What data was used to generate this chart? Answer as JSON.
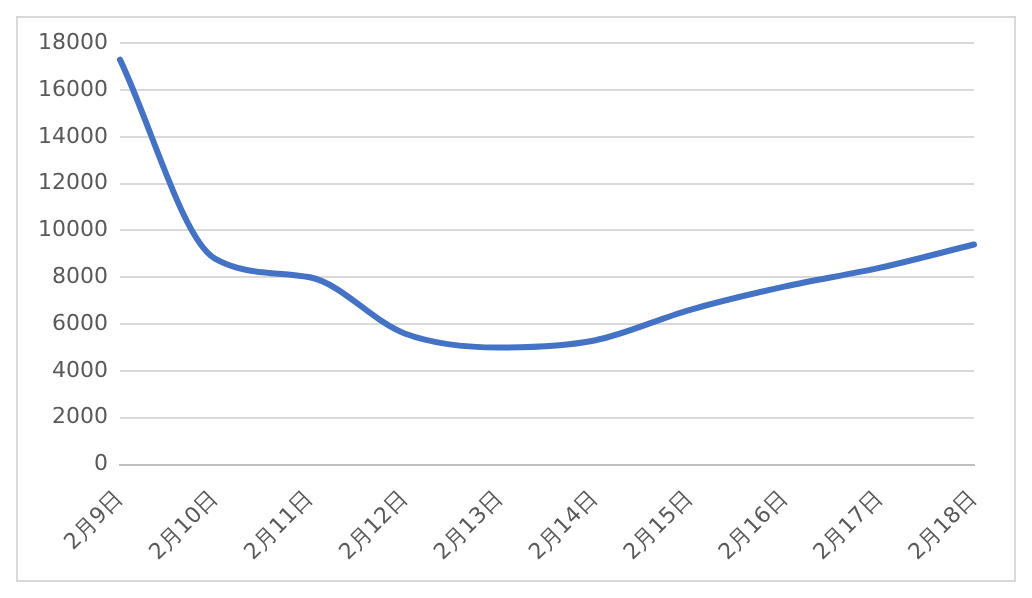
{
  "chart_data": {
    "type": "line",
    "categories": [
      "2月9日",
      "2月10日",
      "2月11日",
      "2月12日",
      "2月13日",
      "2月14日",
      "2月15日",
      "2月16日",
      "2月17日",
      "2月18日"
    ],
    "series": [
      {
        "color": "#4472c4",
        "values": [
          17300,
          8800,
          8000,
          5600,
          5000,
          5300,
          6600,
          7600,
          8400,
          9400
        ]
      }
    ],
    "ylim": [
      0,
      18000
    ],
    "yticks": [
      0,
      2000,
      4000,
      6000,
      8000,
      10000,
      12000,
      14000,
      16000,
      18000
    ],
    "grid": "y",
    "legend": false,
    "marker": "none",
    "line_style": "solid"
  }
}
